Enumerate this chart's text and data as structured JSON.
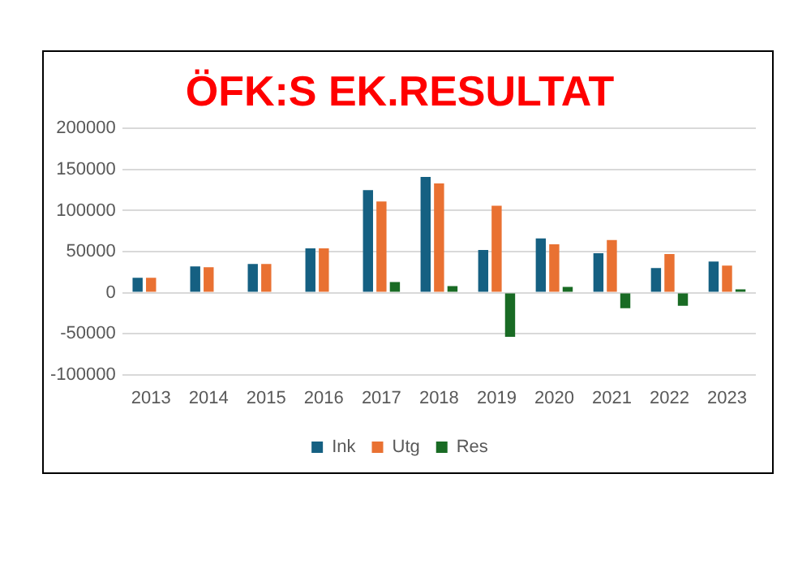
{
  "chart_data": {
    "type": "bar",
    "title": "ÖFK:S EK.RESULTAT",
    "categories": [
      "2013",
      "2014",
      "2015",
      "2016",
      "2017",
      "2018",
      "2019",
      "2020",
      "2021",
      "2022",
      "2023"
    ],
    "series": [
      {
        "name": "Ink",
        "color": "#156082",
        "values": [
          18000,
          32000,
          35000,
          54000,
          125000,
          141000,
          52000,
          66000,
          48000,
          30000,
          38000
        ]
      },
      {
        "name": "Utg",
        "color": "#e97132",
        "values": [
          18000,
          31000,
          35000,
          54000,
          111000,
          133000,
          106000,
          59000,
          64000,
          47000,
          33000
        ]
      },
      {
        "name": "Res",
        "color": "#196b24",
        "values": [
          0,
          0,
          0,
          0,
          13000,
          8000,
          -54000,
          7000,
          -19000,
          -16000,
          4000
        ]
      }
    ],
    "ylim": [
      -100000,
      200000
    ],
    "yticks": [
      -100000,
      -50000,
      0,
      50000,
      100000,
      150000,
      200000
    ],
    "grid": "y",
    "legend": "bottom"
  }
}
